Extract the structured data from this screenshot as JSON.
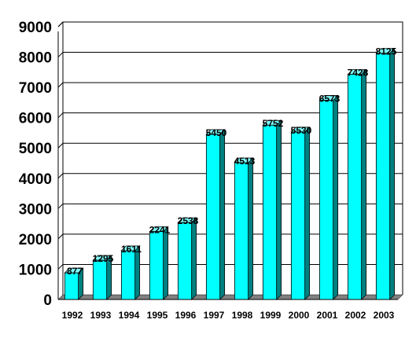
{
  "chart_data": {
    "type": "bar",
    "title": "",
    "xlabel": "",
    "ylabel": "",
    "categories": [
      "1992",
      "1993",
      "1994",
      "1995",
      "1996",
      "1997",
      "1998",
      "1999",
      "2000",
      "2001",
      "2002",
      "2003"
    ],
    "values": [
      877,
      1295,
      1611,
      2241,
      2538,
      5450,
      4513,
      5752,
      5530,
      6573,
      7428,
      8125
    ],
    "ylim": [
      0,
      9000
    ],
    "yticks": [
      0,
      1000,
      2000,
      3000,
      4000,
      5000,
      6000,
      7000,
      8000,
      9000
    ],
    "grid": true,
    "legend": "none",
    "bar_style": "3d",
    "colors": {
      "bar_front": "#00FFFF",
      "bar_side": "#008080",
      "bar_top": "#80FFFF",
      "floor": "#808080",
      "gridline": "#000000"
    }
  }
}
